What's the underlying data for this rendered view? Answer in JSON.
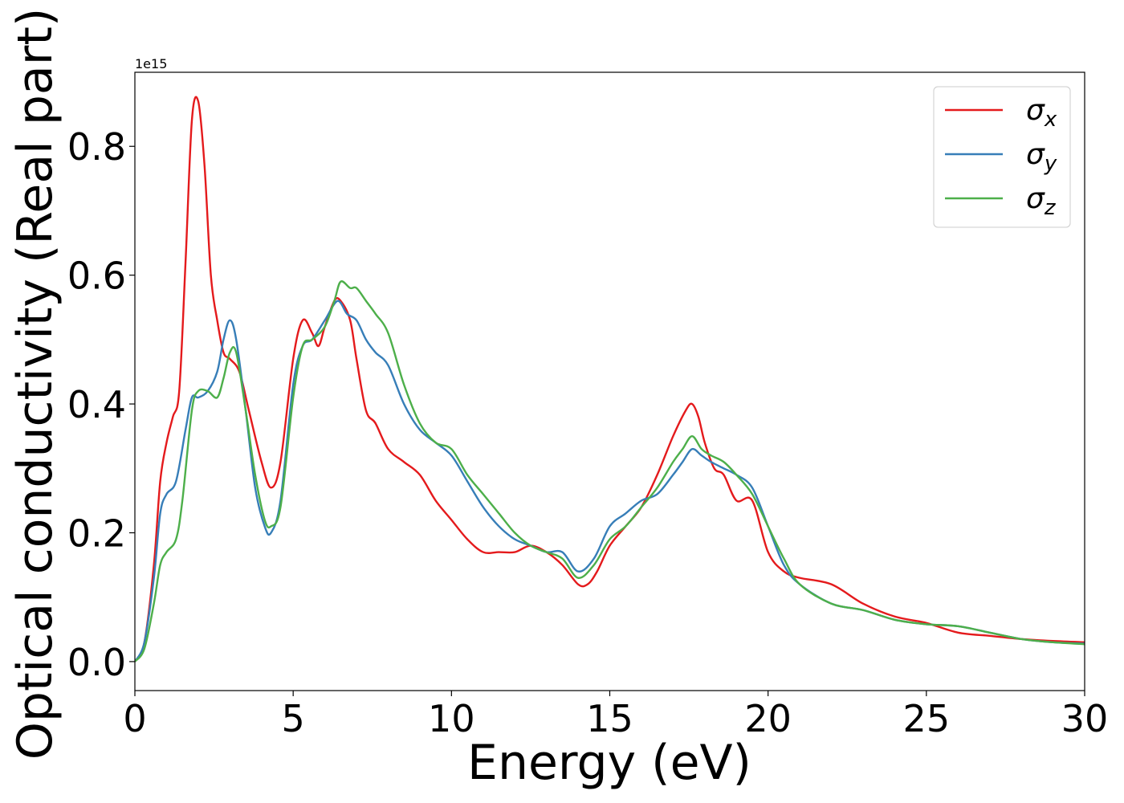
{
  "chart_data": {
    "type": "line",
    "title": "",
    "xlabel": "Energy (eV)",
    "ylabel": "Optical conductivity (Real part)",
    "y_offset_text": "1e15",
    "xlim": [
      0,
      30
    ],
    "ylim": [
      -0.045,
      0.915
    ],
    "xticks": [
      0,
      5,
      10,
      15,
      20,
      25,
      30
    ],
    "xtick_labels": [
      "0",
      "5",
      "10",
      "15",
      "20",
      "25",
      "30"
    ],
    "yticks": [
      0.0,
      0.2,
      0.4,
      0.6,
      0.8
    ],
    "ytick_labels": [
      "0.0",
      "0.2",
      "0.4",
      "0.6",
      "0.8"
    ],
    "grid": false,
    "legend_position": "upper right",
    "series": [
      {
        "name": "σx",
        "legend_base": "σ",
        "legend_sub": "x",
        "color": "#e41a1c",
        "x": [
          0,
          0.3,
          0.6,
          0.8,
          1.0,
          1.2,
          1.4,
          1.6,
          1.8,
          2.0,
          2.2,
          2.4,
          2.6,
          2.8,
          3.0,
          3.3,
          3.6,
          4.0,
          4.3,
          4.6,
          5.0,
          5.3,
          5.6,
          5.8,
          6.0,
          6.3,
          6.5,
          6.8,
          7.0,
          7.3,
          7.6,
          8.0,
          8.5,
          9.0,
          9.5,
          10.0,
          10.5,
          11.0,
          11.5,
          12.0,
          12.5,
          13.0,
          13.5,
          14.0,
          14.3,
          14.6,
          15.0,
          15.5,
          16.0,
          16.5,
          17.0,
          17.4,
          17.6,
          17.8,
          18.0,
          18.3,
          18.6,
          19.0,
          19.5,
          20.0,
          20.5,
          21.0,
          22.0,
          23.0,
          24.0,
          25.0,
          26.0,
          27.0,
          28.0,
          29.0,
          30.0
        ],
        "values": [
          0.0,
          0.03,
          0.15,
          0.28,
          0.34,
          0.38,
          0.42,
          0.62,
          0.84,
          0.87,
          0.77,
          0.6,
          0.53,
          0.48,
          0.47,
          0.45,
          0.39,
          0.31,
          0.27,
          0.31,
          0.47,
          0.53,
          0.51,
          0.49,
          0.52,
          0.56,
          0.56,
          0.53,
          0.47,
          0.39,
          0.37,
          0.33,
          0.31,
          0.29,
          0.25,
          0.22,
          0.19,
          0.17,
          0.17,
          0.17,
          0.18,
          0.17,
          0.15,
          0.12,
          0.12,
          0.14,
          0.18,
          0.21,
          0.24,
          0.29,
          0.35,
          0.39,
          0.4,
          0.38,
          0.34,
          0.3,
          0.29,
          0.25,
          0.25,
          0.17,
          0.14,
          0.13,
          0.12,
          0.09,
          0.07,
          0.06,
          0.045,
          0.04,
          0.035,
          0.032,
          0.03
        ]
      },
      {
        "name": "σy",
        "legend_base": "σ",
        "legend_sub": "y",
        "color": "#377eb8",
        "x": [
          0,
          0.3,
          0.6,
          0.8,
          1.0,
          1.3,
          1.6,
          1.8,
          2.0,
          2.3,
          2.6,
          2.8,
          3.0,
          3.2,
          3.5,
          3.8,
          4.1,
          4.3,
          4.6,
          5.0,
          5.3,
          5.6,
          6.0,
          6.4,
          6.7,
          7.0,
          7.3,
          7.6,
          8.0,
          8.5,
          9.0,
          9.5,
          10.0,
          10.5,
          11.0,
          11.5,
          12.0,
          12.5,
          13.0,
          13.5,
          14.0,
          14.5,
          15.0,
          15.5,
          16.0,
          16.5,
          17.0,
          17.3,
          17.6,
          17.9,
          18.2,
          18.6,
          19.0,
          19.5,
          20.0,
          20.5,
          21.0,
          22.0,
          23.0,
          24.0,
          25.0,
          26.0,
          27.0,
          28.0,
          29.0,
          30.0
        ],
        "values": [
          0.0,
          0.03,
          0.13,
          0.23,
          0.26,
          0.28,
          0.36,
          0.41,
          0.41,
          0.42,
          0.45,
          0.5,
          0.53,
          0.5,
          0.39,
          0.27,
          0.21,
          0.2,
          0.25,
          0.43,
          0.49,
          0.5,
          0.53,
          0.56,
          0.54,
          0.53,
          0.5,
          0.48,
          0.46,
          0.4,
          0.36,
          0.34,
          0.32,
          0.28,
          0.24,
          0.21,
          0.19,
          0.18,
          0.17,
          0.17,
          0.14,
          0.16,
          0.21,
          0.23,
          0.25,
          0.26,
          0.29,
          0.31,
          0.33,
          0.32,
          0.31,
          0.3,
          0.29,
          0.27,
          0.21,
          0.15,
          0.12,
          0.09,
          0.08,
          0.065,
          0.058,
          0.055,
          0.045,
          0.035,
          0.03,
          0.028
        ]
      },
      {
        "name": "σz",
        "legend_base": "σ",
        "legend_sub": "z",
        "color": "#4daf4a",
        "x": [
          0,
          0.3,
          0.6,
          0.8,
          1.0,
          1.3,
          1.5,
          1.8,
          2.0,
          2.3,
          2.6,
          2.8,
          3.0,
          3.2,
          3.5,
          3.8,
          4.1,
          4.3,
          4.6,
          5.0,
          5.3,
          5.6,
          6.0,
          6.3,
          6.5,
          6.8,
          7.0,
          7.3,
          7.6,
          8.0,
          8.5,
          9.0,
          9.5,
          10.0,
          10.5,
          11.0,
          11.5,
          12.0,
          12.5,
          13.0,
          13.5,
          14.0,
          14.5,
          15.0,
          15.5,
          16.0,
          16.5,
          17.0,
          17.3,
          17.6,
          17.9,
          18.2,
          18.6,
          19.0,
          19.5,
          20.0,
          20.5,
          21.0,
          22.0,
          23.0,
          24.0,
          25.0,
          26.0,
          27.0,
          28.0,
          29.0,
          30.0
        ],
        "values": [
          0.0,
          0.02,
          0.09,
          0.15,
          0.17,
          0.19,
          0.25,
          0.39,
          0.42,
          0.42,
          0.41,
          0.44,
          0.48,
          0.48,
          0.39,
          0.29,
          0.22,
          0.21,
          0.24,
          0.41,
          0.49,
          0.5,
          0.52,
          0.56,
          0.59,
          0.58,
          0.58,
          0.56,
          0.54,
          0.51,
          0.43,
          0.37,
          0.34,
          0.33,
          0.29,
          0.26,
          0.23,
          0.2,
          0.18,
          0.17,
          0.16,
          0.13,
          0.15,
          0.19,
          0.21,
          0.24,
          0.27,
          0.31,
          0.33,
          0.35,
          0.33,
          0.32,
          0.31,
          0.29,
          0.26,
          0.21,
          0.16,
          0.12,
          0.09,
          0.08,
          0.065,
          0.058,
          0.055,
          0.045,
          0.035,
          0.03,
          0.027
        ]
      }
    ]
  }
}
